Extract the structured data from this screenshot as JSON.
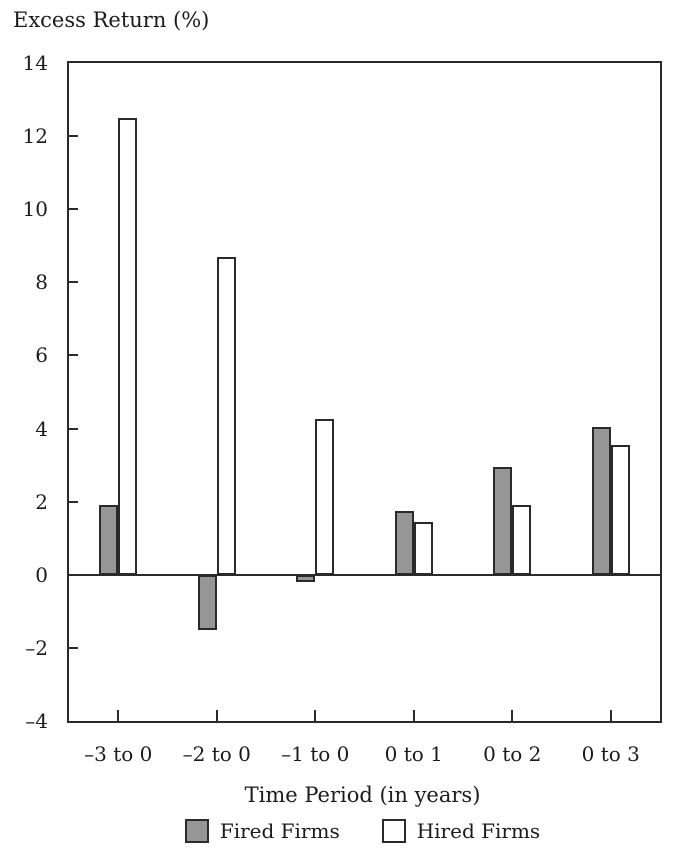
{
  "chart_data": {
    "type": "bar",
    "title": "Excess Return (%)",
    "xlabel": "Time Period (in years)",
    "ylabel": "Excess Return (%)",
    "categories": [
      "–3 to 0",
      "–2 to 0",
      "–1 to 0",
      "0 to 1",
      "0 to 2",
      "0 to 3"
    ],
    "series": [
      {
        "name": "Fired Firms",
        "fill": "#969696",
        "values": [
          1.9,
          -1.5,
          -0.2,
          1.75,
          2.95,
          4.05
        ]
      },
      {
        "name": "Hired Firms",
        "fill": "#ffffff",
        "values": [
          12.5,
          8.7,
          4.25,
          1.45,
          1.9,
          3.55
        ]
      }
    ],
    "ylim": [
      -4,
      14
    ],
    "yticks": [
      14,
      12,
      10,
      8,
      6,
      4,
      2,
      0,
      -2,
      -4
    ],
    "ytick_labels": [
      "14",
      "12",
      "10",
      "8",
      "6",
      "4",
      "2",
      "0",
      "–2",
      "–4"
    ],
    "grid": false,
    "zero_line": true,
    "legend_position": "bottom",
    "line_color": "#2a2a2a"
  }
}
